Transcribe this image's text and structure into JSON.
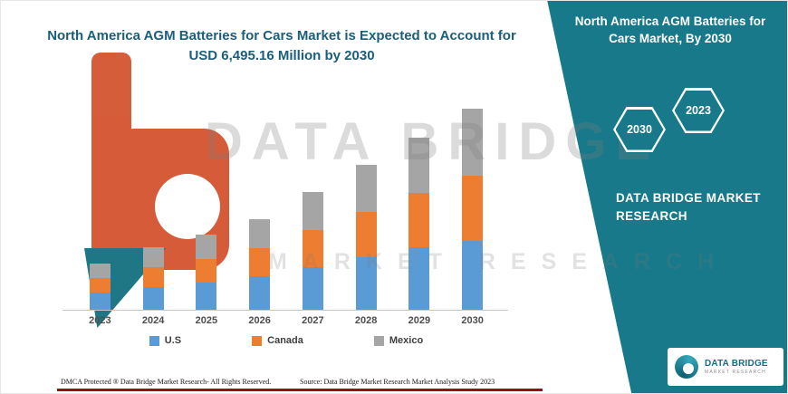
{
  "title": {
    "line1": "North America AGM Batteries for Cars Market is Expected to Account for",
    "line2": "USD 6,495.16 Million by 2030"
  },
  "side_panel": {
    "title": "North America AGM Batteries for Cars Market, By 2030",
    "hexagon_left": "2030",
    "hexagon_right": "2023",
    "brand_text": "DATA BRIDGE MARKET RESEARCH",
    "teal_color": "#17798a"
  },
  "watermark": {
    "line1": "DATA BRIDGE",
    "line2": "MARKET RESEARCH"
  },
  "chart_data": {
    "type": "bar",
    "stacked": true,
    "title": "North America AGM Batteries for Cars Market is Expected to Account for USD 6,495.16 Million by 2030",
    "unit": "USD Million",
    "categories": [
      "2023",
      "2024",
      "2025",
      "2026",
      "2027",
      "2028",
      "2029",
      "2030"
    ],
    "series": [
      {
        "name": "U.S",
        "color": "#5b9bd5",
        "values": [
          560,
          740,
          890,
          1080,
          1390,
          1700,
          2010,
          2220
        ]
      },
      {
        "name": "Canada",
        "color": "#ed7d31",
        "values": [
          470,
          630,
          760,
          920,
          1190,
          1470,
          1780,
          2100
        ]
      },
      {
        "name": "Mexico",
        "color": "#a5a5a5",
        "values": [
          460,
          650,
          780,
          930,
          1220,
          1510,
          1770,
          2175.16
        ]
      }
    ],
    "total_2030": 6495.16,
    "ylim": [
      0,
      6600
    ],
    "grid": false,
    "legend_position": "bottom",
    "xlabel": "",
    "ylabel": ""
  },
  "footer": {
    "dmca": "DMCA Protected ® Data Bridge Market Research-  All Rights Reserved.",
    "source": "Source: Data Bridge Market Research  Market Analysis Study 2023",
    "line_color": "#8c1515"
  },
  "logo_card": {
    "brand": "DATA BRIDGE",
    "sub": "MARKET RESEARCH"
  }
}
